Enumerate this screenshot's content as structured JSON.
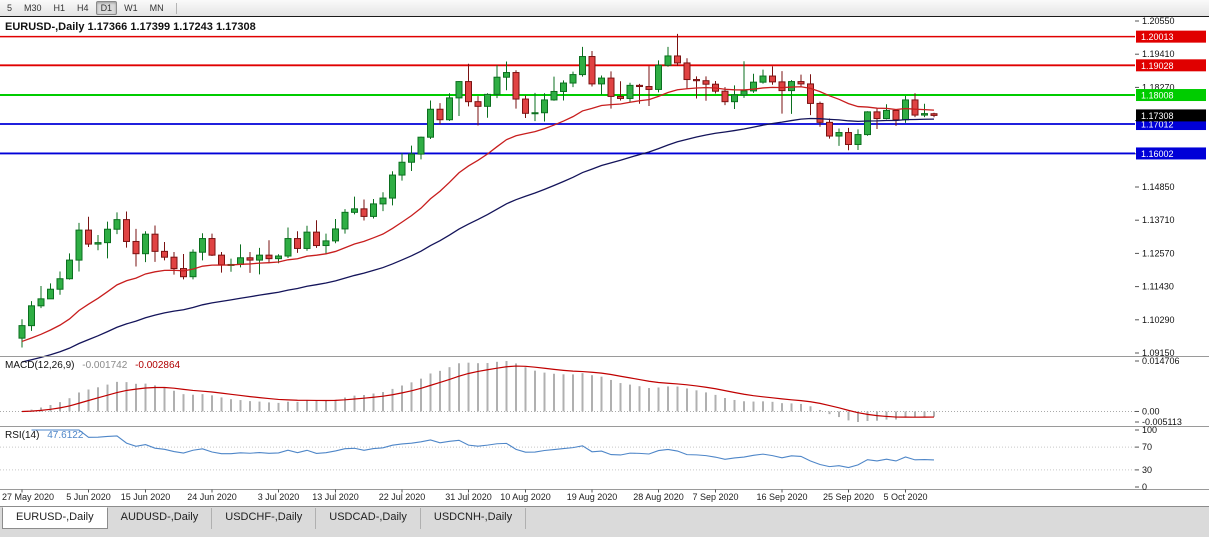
{
  "toolbar": {
    "timeframes": [
      {
        "label": "5",
        "active": false
      },
      {
        "label": "M30",
        "active": false
      },
      {
        "label": "H1",
        "active": false
      },
      {
        "label": "H4",
        "active": false
      },
      {
        "label": "D1",
        "active": true
      },
      {
        "label": "W1",
        "active": false
      },
      {
        "label": "MN",
        "active": false
      }
    ]
  },
  "chart_header": {
    "title": "EURUSD-,Daily 1.17366 1.17399 1.17243 1.17308"
  },
  "tabs": [
    {
      "label": "EURUSD-,Daily",
      "active": true
    },
    {
      "label": "AUDUSD-,Daily",
      "active": false
    },
    {
      "label": "USDCHF-,Daily",
      "active": false
    },
    {
      "label": "USDCAD-,Daily",
      "active": false
    },
    {
      "label": "USDCNH-,Daily",
      "active": false
    }
  ],
  "chart_data": {
    "type": "candlestick",
    "title": "EURUSD-,Daily",
    "symbol": "EURUSD-",
    "timeframe": "Daily",
    "current_bar": {
      "open": 1.17366,
      "high": 1.17399,
      "low": 1.17243,
      "close": 1.17308
    },
    "y_range": [
      1.0915,
      1.2055
    ],
    "y_ticks": [
      "1.20550",
      "1.19410",
      "1.18270",
      "1.17130",
      "1.15990",
      "1.14850",
      "1.13710",
      "1.12570",
      "1.11430",
      "1.10290",
      "1.09150"
    ],
    "x_tick_labels": [
      "27 May 2020",
      "5 Jun 2020",
      "15 Jun 2020",
      "24 Jun 2020",
      "3 Jul 2020",
      "13 Jul 2020",
      "22 Jul 2020",
      "31 Jul 2020",
      "10 Aug 2020",
      "19 Aug 2020",
      "28 Aug 2020",
      "7 Sep 2020",
      "16 Sep 2020",
      "25 Sep 2020",
      "5 Oct 2020"
    ],
    "x_tick_indices": [
      0,
      7,
      13,
      20,
      27,
      33,
      40,
      47,
      53,
      60,
      67,
      73,
      80,
      87,
      93
    ],
    "h_lines": [
      {
        "price": 1.20013,
        "label": "1.20013",
        "color": "#e00000",
        "width": 1.5
      },
      {
        "price": 1.19028,
        "label": "1.19028",
        "color": "#e00000",
        "width": 1.8
      },
      {
        "price": 1.18008,
        "label": "1.18008",
        "color": "#00cc00",
        "width": 2
      },
      {
        "price": 1.17012,
        "label": "1.17012",
        "color": "#0000d8",
        "width": 1.8
      },
      {
        "price": 1.16002,
        "label": "1.16002",
        "color": "#0000d8",
        "width": 1.8
      }
    ],
    "current_price": {
      "value": 1.17308,
      "label": "1.17308",
      "color": "#000000"
    },
    "colors": {
      "bull_fill": "#2fae44",
      "bull_border": "#0b6f1f",
      "bear_fill": "#e04343",
      "bear_border": "#7a1212"
    },
    "ma": [
      {
        "period": 20,
        "color": "#c81e1e"
      },
      {
        "period": 50,
        "color": "#14145a"
      }
    ],
    "macd": {
      "name": "MACD(12,26,9)",
      "main_value": "-0.001742",
      "signal_value": "-0.002864",
      "scale_ticks": [
        "0.014706",
        "0.00",
        "-0.005113"
      ],
      "histogram_color": "#b0b0b0",
      "signal_color": "#c00000"
    },
    "rsi": {
      "name": "RSI(14)",
      "value_label": "47.6122",
      "levels": [
        100,
        70,
        30,
        0
      ],
      "dotted_levels": [
        70,
        30
      ],
      "color": "#4e86c8"
    },
    "candles": [
      [
        1.0966,
        1.1031,
        1.0934,
        1.1009
      ],
      [
        1.1009,
        1.1093,
        1.0991,
        1.1077
      ],
      [
        1.1077,
        1.1145,
        1.1069,
        1.1101
      ],
      [
        1.1101,
        1.1154,
        1.1101,
        1.1134
      ],
      [
        1.1134,
        1.1195,
        1.1115,
        1.117
      ],
      [
        1.117,
        1.1257,
        1.1167,
        1.1234
      ],
      [
        1.1234,
        1.1362,
        1.1195,
        1.1337
      ],
      [
        1.1337,
        1.1383,
        1.1279,
        1.1289
      ],
      [
        1.1289,
        1.132,
        1.1268,
        1.1294
      ],
      [
        1.1294,
        1.1366,
        1.124,
        1.134
      ],
      [
        1.134,
        1.1398,
        1.1323,
        1.1373
      ],
      [
        1.1373,
        1.1401,
        1.1277,
        1.1298
      ],
      [
        1.1298,
        1.1341,
        1.1212,
        1.1256
      ],
      [
        1.1256,
        1.1333,
        1.1227,
        1.1323
      ],
      [
        1.1323,
        1.1353,
        1.1228,
        1.1264
      ],
      [
        1.1264,
        1.1296,
        1.1233,
        1.1244
      ],
      [
        1.1244,
        1.1262,
        1.1184,
        1.1205
      ],
      [
        1.1205,
        1.1255,
        1.1168,
        1.1177
      ],
      [
        1.1177,
        1.1271,
        1.1168,
        1.1261
      ],
      [
        1.1261,
        1.1326,
        1.1233,
        1.1308
      ],
      [
        1.1308,
        1.1325,
        1.1248,
        1.1251
      ],
      [
        1.1251,
        1.1262,
        1.1191,
        1.1218
      ],
      [
        1.1218,
        1.1239,
        1.1194,
        1.1219
      ],
      [
        1.1219,
        1.1288,
        1.1209,
        1.1242
      ],
      [
        1.1242,
        1.1262,
        1.119,
        1.1234
      ],
      [
        1.1234,
        1.1276,
        1.1185,
        1.1251
      ],
      [
        1.1251,
        1.1302,
        1.1223,
        1.1239
      ],
      [
        1.1239,
        1.1254,
        1.1223,
        1.1248
      ],
      [
        1.1248,
        1.1346,
        1.1241,
        1.1308
      ],
      [
        1.1308,
        1.1333,
        1.1259,
        1.1274
      ],
      [
        1.1274,
        1.1352,
        1.1266,
        1.133
      ],
      [
        1.133,
        1.1371,
        1.1276,
        1.1284
      ],
      [
        1.1284,
        1.1325,
        1.1254,
        1.13
      ],
      [
        1.13,
        1.1375,
        1.1292,
        1.1341
      ],
      [
        1.1341,
        1.1409,
        1.1325,
        1.1398
      ],
      [
        1.1398,
        1.1452,
        1.1391,
        1.141
      ],
      [
        1.141,
        1.1442,
        1.137,
        1.1384
      ],
      [
        1.1384,
        1.1444,
        1.1377,
        1.1427
      ],
      [
        1.1427,
        1.1467,
        1.1402,
        1.1447
      ],
      [
        1.1447,
        1.1539,
        1.1422,
        1.1526
      ],
      [
        1.1526,
        1.1601,
        1.1507,
        1.157
      ],
      [
        1.157,
        1.1627,
        1.154,
        1.1598
      ],
      [
        1.1598,
        1.1658,
        1.158,
        1.1656
      ],
      [
        1.1656,
        1.1782,
        1.165,
        1.1752
      ],
      [
        1.1752,
        1.1773,
        1.17,
        1.1716
      ],
      [
        1.1716,
        1.1807,
        1.1712,
        1.1791
      ],
      [
        1.1791,
        1.1849,
        1.1729,
        1.1847
      ],
      [
        1.1847,
        1.1908,
        1.1762,
        1.1778
      ],
      [
        1.1778,
        1.1797,
        1.1696,
        1.1762
      ],
      [
        1.1762,
        1.1807,
        1.1723,
        1.1803
      ],
      [
        1.1803,
        1.1904,
        1.179,
        1.1862
      ],
      [
        1.1862,
        1.1916,
        1.1817,
        1.1878
      ],
      [
        1.1878,
        1.1886,
        1.1754,
        1.1787
      ],
      [
        1.1787,
        1.1799,
        1.1722,
        1.1738
      ],
      [
        1.1738,
        1.1808,
        1.1711,
        1.174
      ],
      [
        1.174,
        1.1807,
        1.171,
        1.1784
      ],
      [
        1.1784,
        1.1864,
        1.1781,
        1.1813
      ],
      [
        1.1813,
        1.1851,
        1.1782,
        1.1842
      ],
      [
        1.1842,
        1.1881,
        1.1828,
        1.1871
      ],
      [
        1.1871,
        1.1966,
        1.1864,
        1.1933
      ],
      [
        1.1933,
        1.1952,
        1.183,
        1.1839
      ],
      [
        1.1839,
        1.1868,
        1.1802,
        1.1859
      ],
      [
        1.1859,
        1.1882,
        1.1754,
        1.1796
      ],
      [
        1.1796,
        1.1848,
        1.1782,
        1.1789
      ],
      [
        1.1789,
        1.1843,
        1.1775,
        1.1834
      ],
      [
        1.1834,
        1.1839,
        1.1771,
        1.183
      ],
      [
        1.183,
        1.19,
        1.1763,
        1.182
      ],
      [
        1.182,
        1.192,
        1.181,
        1.1903
      ],
      [
        1.1903,
        1.1966,
        1.1898,
        1.1935
      ],
      [
        1.1935,
        1.2011,
        1.1901,
        1.1911
      ],
      [
        1.1911,
        1.1927,
        1.1823,
        1.1854
      ],
      [
        1.1854,
        1.1865,
        1.1789,
        1.185
      ],
      [
        1.185,
        1.1865,
        1.1781,
        1.1838
      ],
      [
        1.1838,
        1.1849,
        1.1806,
        1.1814
      ],
      [
        1.1814,
        1.1828,
        1.1766,
        1.1778
      ],
      [
        1.1778,
        1.1834,
        1.1753,
        1.1801
      ],
      [
        1.1801,
        1.1917,
        1.1791,
        1.1815
      ],
      [
        1.1815,
        1.1874,
        1.1808,
        1.1845
      ],
      [
        1.1845,
        1.1888,
        1.184,
        1.1866
      ],
      [
        1.1866,
        1.1899,
        1.1836,
        1.1846
      ],
      [
        1.1846,
        1.1883,
        1.1737,
        1.1816
      ],
      [
        1.1816,
        1.1852,
        1.1736,
        1.1847
      ],
      [
        1.1847,
        1.1871,
        1.1827,
        1.1839
      ],
      [
        1.1839,
        1.1872,
        1.1732,
        1.1772
      ],
      [
        1.1772,
        1.1778,
        1.1692,
        1.1707
      ],
      [
        1.1707,
        1.172,
        1.1651,
        1.166
      ],
      [
        1.166,
        1.1686,
        1.1626,
        1.1672
      ],
      [
        1.1672,
        1.1688,
        1.1611,
        1.1631
      ],
      [
        1.1631,
        1.1683,
        1.1612,
        1.1665
      ],
      [
        1.1665,
        1.1745,
        1.1661,
        1.1743
      ],
      [
        1.1743,
        1.1755,
        1.1684,
        1.172
      ],
      [
        1.172,
        1.1769,
        1.1717,
        1.1748
      ],
      [
        1.1748,
        1.1752,
        1.1695,
        1.1716
      ],
      [
        1.1716,
        1.1798,
        1.1705,
        1.1784
      ],
      [
        1.1784,
        1.1807,
        1.1725,
        1.1732
      ],
      [
        1.1732,
        1.1771,
        1.1725,
        1.1737
      ],
      [
        1.17366,
        1.17399,
        1.17243,
        1.17308
      ]
    ]
  }
}
